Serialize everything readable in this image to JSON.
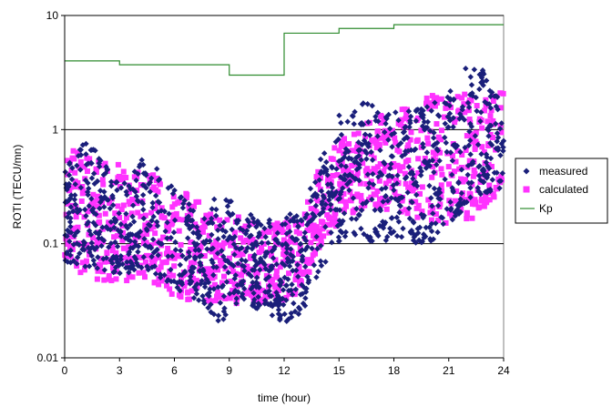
{
  "chart_data": {
    "type": "scatter",
    "title": "",
    "xlabel": "time (hour)",
    "ylabel": "ROTI (TECU/mn)",
    "x_ticks": [
      "0",
      "3",
      "6",
      "9",
      "12",
      "15",
      "18",
      "21",
      "24"
    ],
    "y_ticks": [
      "0.01",
      "0.1",
      "1",
      "10"
    ],
    "xlim": [
      0,
      24
    ],
    "ylim": [
      0.01,
      10
    ],
    "y_scale": "log",
    "grid": "horizontal major lines at 0.1, 1 and 10",
    "legend_position": "right",
    "colors": {
      "measured": "#1a1f7a",
      "calculated": "#ff33ff",
      "kp": "#2e8b2e",
      "grid": "#000000",
      "frame": "#808080"
    },
    "series": [
      {
        "name": "measured",
        "marker": "diamond",
        "envelope": [
          {
            "x": 0,
            "low": 0.07,
            "high": 0.45
          },
          {
            "x": 1.2,
            "low": 0.06,
            "high": 0.85
          },
          {
            "x": 2,
            "low": 0.06,
            "high": 0.55
          },
          {
            "x": 3,
            "low": 0.05,
            "high": 0.35
          },
          {
            "x": 4.5,
            "low": 0.06,
            "high": 0.6
          },
          {
            "x": 6,
            "low": 0.04,
            "high": 0.3
          },
          {
            "x": 7.5,
            "low": 0.03,
            "high": 0.18
          },
          {
            "x": 8.5,
            "low": 0.02,
            "high": 0.3
          },
          {
            "x": 9.5,
            "low": 0.03,
            "high": 0.2
          },
          {
            "x": 11,
            "low": 0.025,
            "high": 0.16
          },
          {
            "x": 12,
            "low": 0.02,
            "high": 0.18
          },
          {
            "x": 13,
            "low": 0.025,
            "high": 0.2
          },
          {
            "x": 14,
            "low": 0.06,
            "high": 0.6
          },
          {
            "x": 15,
            "low": 0.1,
            "high": 1.4
          },
          {
            "x": 16,
            "low": 0.12,
            "high": 1.8
          },
          {
            "x": 17,
            "low": 0.1,
            "high": 1.6
          },
          {
            "x": 18,
            "low": 0.1,
            "high": 1.5
          },
          {
            "x": 20,
            "low": 0.1,
            "high": 1.6
          },
          {
            "x": 21,
            "low": 0.15,
            "high": 2.3
          },
          {
            "x": 22.5,
            "low": 0.25,
            "high": 4.6
          },
          {
            "x": 23.5,
            "low": 0.3,
            "high": 2.5
          },
          {
            "x": 24,
            "low": 0.3,
            "high": 1.5
          }
        ]
      },
      {
        "name": "calculated",
        "marker": "square",
        "envelope": [
          {
            "x": 0,
            "low": 0.07,
            "high": 0.7
          },
          {
            "x": 1.2,
            "low": 0.05,
            "high": 0.6
          },
          {
            "x": 3,
            "low": 0.045,
            "high": 0.5
          },
          {
            "x": 4.5,
            "low": 0.05,
            "high": 0.45
          },
          {
            "x": 6,
            "low": 0.035,
            "high": 0.35
          },
          {
            "x": 7.5,
            "low": 0.03,
            "high": 0.22
          },
          {
            "x": 9,
            "low": 0.03,
            "high": 0.2
          },
          {
            "x": 10.5,
            "low": 0.03,
            "high": 0.18
          },
          {
            "x": 12,
            "low": 0.03,
            "high": 0.15
          },
          {
            "x": 13,
            "low": 0.04,
            "high": 0.18
          },
          {
            "x": 14,
            "low": 0.1,
            "high": 0.55
          },
          {
            "x": 15,
            "low": 0.15,
            "high": 0.8
          },
          {
            "x": 16,
            "low": 0.2,
            "high": 1.0
          },
          {
            "x": 18,
            "low": 0.2,
            "high": 1.6
          },
          {
            "x": 20,
            "low": 0.15,
            "high": 2.0
          },
          {
            "x": 22,
            "low": 0.15,
            "high": 2.2
          },
          {
            "x": 24,
            "low": 0.3,
            "high": 2.2
          }
        ]
      },
      {
        "name": "Kp",
        "type": "step-line",
        "points": [
          [
            0,
            4.0
          ],
          [
            3,
            4.0
          ],
          [
            3,
            3.7
          ],
          [
            9,
            3.7
          ],
          [
            9,
            3.0
          ],
          [
            12,
            3.0
          ],
          [
            12,
            7.0
          ],
          [
            15,
            7.0
          ],
          [
            15,
            7.7
          ],
          [
            18,
            7.7
          ],
          [
            18,
            8.3
          ],
          [
            24,
            8.3
          ]
        ]
      }
    ]
  }
}
